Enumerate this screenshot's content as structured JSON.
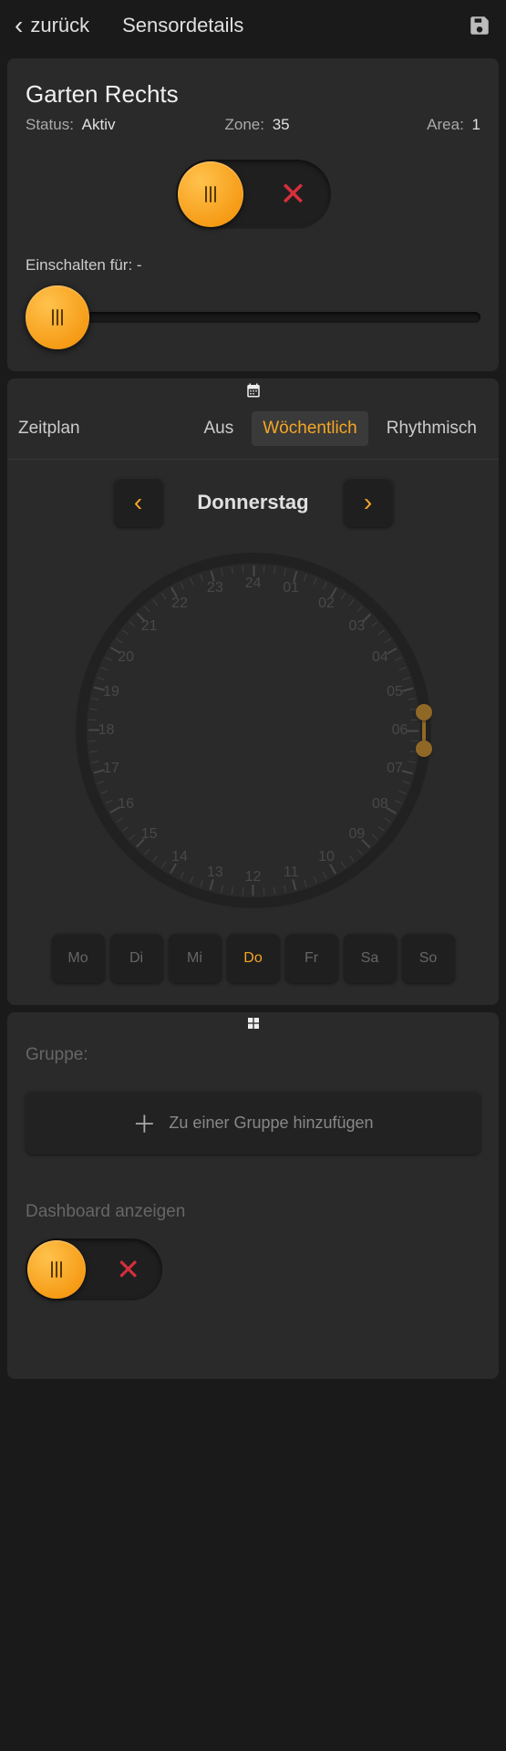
{
  "header": {
    "back_label": "zurück",
    "title": "Sensordetails"
  },
  "sensor": {
    "name": "Garten Rechts",
    "status_label": "Status:",
    "status_value": "Aktiv",
    "zone_label": "Zone:",
    "zone_value": "35",
    "area_label": "Area:",
    "area_value": "1"
  },
  "turnon": {
    "label": "Einschalten für: -"
  },
  "schedule": {
    "tab_label": "Zeitplan",
    "tabs": {
      "off": "Aus",
      "weekly": "Wöchentlich",
      "rhythmic": "Rhythmisch"
    },
    "active_tab": "weekly",
    "day_name": "Donnerstag",
    "days": [
      "Mo",
      "Di",
      "Mi",
      "Do",
      "Fr",
      "Sa",
      "So"
    ],
    "active_day_index": 3,
    "hours": [
      "24",
      "01",
      "02",
      "03",
      "04",
      "05",
      "06",
      "07",
      "08",
      "09",
      "10",
      "11",
      "12",
      "13",
      "14",
      "15",
      "16",
      "17",
      "18",
      "19",
      "20",
      "21",
      "22",
      "23"
    ],
    "handle1_hour": 5.6,
    "handle2_hour": 6.4
  },
  "group": {
    "label": "Gruppe:",
    "add_label": "Zu einer Gruppe hinzufügen"
  },
  "dashboard": {
    "label": "Dashboard anzeigen"
  },
  "colors": {
    "accent": "#f5a623",
    "danger": "#d62f3d",
    "bg": "#1a1a1a",
    "card": "#2a2a2a"
  }
}
